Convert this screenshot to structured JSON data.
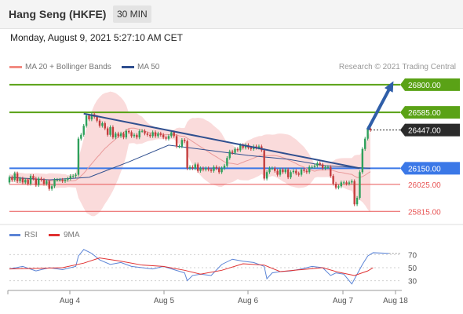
{
  "header": {
    "title": "Hang Seng (HKFE)",
    "timeframe": "30 MIN"
  },
  "datetime": "Monday, August 9, 2021 5:27:10 AM CET",
  "credit": "Research © 2021 Trading Central",
  "colors": {
    "support_resistance_green": "#5aa216",
    "red_line": "#e85555",
    "pivot_blue": "#3b78e7",
    "trend_arrow": "#2f5ea8",
    "ma50": "#2f4f8f",
    "bollinger": "#f9d2d2",
    "ma20": "#e99a9a",
    "candle_up": "#2ea05b",
    "candle_down": "#c43d3d",
    "rsi": "#5b84d6",
    "rsi_ma": "#e03030"
  },
  "chart_data": [
    {
      "type": "candlestick",
      "title": "Hang Seng (HKFE)",
      "timeframe": "30 MIN",
      "legend": [
        {
          "name": "MA 20 + Bollinger Bands",
          "color": "#f28b82"
        },
        {
          "name": "MA 50",
          "color": "#2f4f8f"
        }
      ],
      "x_ticks": [
        "Aug 4",
        "Aug 5",
        "Aug 6",
        "Aug 7",
        "Aug 18"
      ],
      "ylim": [
        25780,
        26860
      ],
      "levels": [
        {
          "value": 26800,
          "label": "26800.00",
          "kind": "resistance",
          "color": "#5aa216"
        },
        {
          "value": 26585,
          "label": "26585.00",
          "kind": "resistance",
          "color": "#5aa216"
        },
        {
          "value": 26447,
          "label": "26447.00",
          "kind": "last",
          "color": "#2b2b2b"
        },
        {
          "value": 26150,
          "label": "26150.00",
          "kind": "pivot",
          "color": "#3b78e7"
        },
        {
          "value": 26025,
          "label": "26025.00",
          "kind": "support",
          "color": "#e85555"
        },
        {
          "value": 25815,
          "label": "25815.00",
          "kind": "support",
          "color": "#e85555"
        }
      ],
      "close": [
        26080,
        26060,
        26110,
        26050,
        26070,
        26040,
        26060,
        26030,
        26090,
        26070,
        26020,
        26070,
        26060,
        26030,
        26050,
        25990,
        26010,
        26060,
        26060,
        26060,
        26050,
        26060,
        26070,
        26090,
        26090,
        26100,
        26380,
        26410,
        26480,
        26560,
        26530,
        26570,
        26550,
        26520,
        26480,
        26500,
        26460,
        26410,
        26470,
        26390,
        26420,
        26400,
        26420,
        26390,
        26440,
        26430,
        26400,
        26410,
        26390,
        26440,
        26440,
        26420,
        26410,
        26400,
        26430,
        26400,
        26420,
        26410,
        26390,
        26380,
        26400,
        26430,
        26400,
        26320,
        26320,
        26370,
        26360,
        26150,
        26160,
        26150,
        26180,
        26130,
        26150,
        26140,
        26150,
        26140,
        26130,
        26160,
        26150,
        26120,
        26150,
        26170,
        26230,
        26280,
        26270,
        26300,
        26290,
        26330,
        26310,
        26330,
        26310,
        26300,
        26320,
        26310,
        26320,
        26290,
        26070,
        26120,
        26150,
        26150,
        26130,
        26100,
        26140,
        26120,
        26140,
        26080,
        26120,
        26130,
        26110,
        26100,
        26140,
        26130,
        26120,
        26160,
        26160,
        26170,
        26190,
        26180,
        26150,
        26160,
        26160,
        26090,
        26030,
        26000,
        26010,
        26040,
        26040,
        26030,
        26040,
        26050,
        25870,
        25920,
        26120,
        26300,
        26380,
        26460,
        26447
      ],
      "open": [
        26040,
        26080,
        26060,
        26110,
        26050,
        26070,
        26040,
        26060,
        26030,
        26090,
        26070,
        26020,
        26070,
        26060,
        26030,
        26050,
        25990,
        26010,
        26060,
        26060,
        26060,
        26050,
        26060,
        26070,
        26090,
        26090,
        26100,
        26380,
        26410,
        26480,
        26560,
        26530,
        26570,
        26550,
        26520,
        26480,
        26500,
        26460,
        26410,
        26470,
        26390,
        26420,
        26400,
        26420,
        26390,
        26440,
        26430,
        26400,
        26410,
        26390,
        26440,
        26440,
        26420,
        26410,
        26400,
        26430,
        26400,
        26420,
        26410,
        26390,
        26380,
        26400,
        26430,
        26400,
        26320,
        26320,
        26370,
        26360,
        26150,
        26160,
        26150,
        26180,
        26130,
        26150,
        26140,
        26150,
        26140,
        26130,
        26160,
        26150,
        26120,
        26150,
        26170,
        26230,
        26280,
        26270,
        26300,
        26290,
        26330,
        26310,
        26330,
        26310,
        26300,
        26320,
        26310,
        26320,
        26290,
        26070,
        26120,
        26150,
        26150,
        26130,
        26100,
        26140,
        26120,
        26140,
        26080,
        26120,
        26130,
        26110,
        26100,
        26140,
        26130,
        26120,
        26160,
        26160,
        26170,
        26190,
        26180,
        26150,
        26160,
        26160,
        26090,
        26030,
        26000,
        26010,
        26040,
        26040,
        26030,
        26040,
        26050,
        25870,
        25920,
        26120,
        26300,
        26380,
        26460
      ],
      "ma50_x": [
        0,
        15,
        30,
        45,
        60,
        75,
        90,
        105,
        119,
        136
      ],
      "ma50": [
        26080,
        26060,
        26080,
        26200,
        26330,
        26290,
        26250,
        26220,
        26170,
        26150
      ],
      "trendline": [
        {
          "i": 28,
          "v": 26575
        },
        {
          "i": 132,
          "v": 26150
        }
      ],
      "arrow": [
        {
          "i": 135,
          "v": 26450
        },
        {
          "i": 144,
          "v": 26800
        }
      ]
    },
    {
      "type": "line",
      "legend": [
        {
          "name": "RSI",
          "color": "#5b84d6"
        },
        {
          "name": "9MA",
          "color": "#e03030"
        }
      ],
      "ylim": [
        15,
        85
      ],
      "y_ticks": [
        70,
        50,
        30
      ],
      "rsi_x": [
        0,
        5,
        10,
        15,
        20,
        25,
        26,
        28,
        31,
        34,
        38,
        42,
        46,
        50,
        54,
        58,
        62,
        66,
        67,
        69,
        72,
        76,
        80,
        84,
        88,
        92,
        96,
        97,
        99,
        102,
        106,
        110,
        114,
        118,
        121,
        123,
        126,
        129,
        131,
        133,
        135,
        137,
        143
      ],
      "rsi": [
        48,
        52,
        45,
        50,
        47,
        52,
        68,
        78,
        72,
        62,
        55,
        58,
        52,
        50,
        48,
        52,
        47,
        42,
        30,
        38,
        40,
        38,
        55,
        63,
        60,
        58,
        52,
        33,
        42,
        44,
        45,
        48,
        52,
        50,
        38,
        42,
        40,
        25,
        40,
        55,
        68,
        73,
        72
      ],
      "ma_x": [
        0,
        10,
        20,
        28,
        34,
        42,
        50,
        58,
        66,
        72,
        80,
        88,
        96,
        102,
        110,
        118,
        124,
        130,
        135,
        137
      ],
      "ma": [
        48,
        49,
        50,
        57,
        65,
        60,
        54,
        52,
        46,
        40,
        46,
        56,
        54,
        44,
        47,
        50,
        43,
        38,
        45,
        50
      ]
    }
  ]
}
